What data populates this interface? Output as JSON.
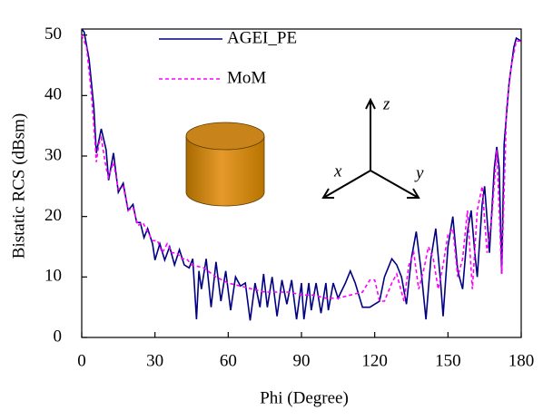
{
  "chart_data": {
    "type": "line",
    "x_label": "Phi (Degree)",
    "y_label": "Bistatic RCS (dBsm)",
    "xlim": [
      0,
      180
    ],
    "ylim": [
      0,
      51
    ],
    "xticks": [
      0,
      30,
      60,
      90,
      120,
      150,
      180
    ],
    "yticks": [
      0,
      10,
      20,
      30,
      40,
      50
    ],
    "grid": false,
    "legend": "top-left",
    "inset_axes": [
      "x",
      "y",
      "z"
    ],
    "series": [
      {
        "name": "AGEI_PE",
        "color": "#000080",
        "dash": false,
        "x": [
          0,
          1,
          3,
          5,
          6,
          8,
          10,
          11,
          13,
          15,
          17,
          19,
          21,
          22.5,
          24,
          25.5,
          27,
          29,
          30,
          32,
          34,
          36,
          38,
          40,
          42,
          44,
          45.5,
          47,
          48,
          49,
          51,
          53,
          55,
          57,
          59,
          61,
          63,
          65,
          67,
          69,
          71,
          73,
          74.5,
          76,
          78,
          80,
          82,
          84,
          86,
          88,
          90,
          91,
          93,
          94,
          96,
          98,
          100,
          101,
          103,
          105,
          108,
          110,
          112,
          115,
          118,
          120,
          122,
          124,
          127,
          129,
          131,
          133,
          135,
          137,
          139,
          141,
          143,
          145,
          147,
          148,
          150,
          152,
          154,
          156,
          158,
          159.5,
          161,
          162,
          164,
          165,
          166.5,
          167,
          169,
          170,
          171,
          172,
          173,
          175,
          177,
          178,
          180
        ],
        "values": [
          51,
          50.5,
          46,
          38,
          30.5,
          34.5,
          31,
          26,
          30.5,
          24,
          25.5,
          21,
          22,
          19,
          19,
          16.5,
          18,
          15.5,
          12.8,
          15.5,
          12.8,
          15,
          12,
          14.5,
          12,
          11.5,
          13,
          3,
          11,
          8,
          13,
          5,
          12.5,
          6,
          11,
          4.5,
          10,
          8.5,
          9,
          2.8,
          9,
          5,
          10.5,
          5,
          10,
          3.5,
          9.5,
          5.5,
          9.5,
          3,
          9,
          3,
          9,
          4.5,
          9,
          4,
          9,
          4.5,
          9,
          6.5,
          9,
          11,
          9,
          5,
          5,
          5.5,
          6,
          10,
          13,
          12,
          10,
          5.5,
          13,
          17.5,
          11,
          3,
          13,
          18,
          9,
          3.5,
          15,
          20,
          11,
          8,
          17.5,
          21,
          14,
          10,
          22,
          25,
          17,
          14,
          28,
          31.5,
          28,
          10.5,
          32,
          42,
          48,
          49.5,
          49
        ]
      },
      {
        "name": "MoM",
        "color": "#ff00ff",
        "dash": true,
        "x": [
          0,
          2,
          4,
          5.5,
          6,
          7,
          8,
          10,
          11,
          13,
          15,
          17,
          19,
          21,
          23,
          25,
          27,
          29,
          31,
          33,
          35,
          37,
          39,
          41,
          43,
          45,
          50,
          55,
          60,
          65,
          70,
          75,
          80,
          85,
          90,
          95,
          100,
          105,
          110,
          115,
          118,
          120,
          122,
          124,
          127,
          129,
          132,
          134,
          136,
          138,
          140,
          142,
          144,
          146,
          148,
          150,
          152,
          154,
          156,
          158,
          160,
          162,
          164,
          166,
          168,
          170,
          172,
          174,
          176,
          178,
          180
        ],
        "values": [
          50,
          48,
          40,
          32,
          29,
          32,
          33,
          28,
          26.5,
          29,
          24.5,
          25,
          21,
          21.5,
          18.5,
          19,
          17.5,
          16,
          16,
          14,
          15.5,
          14,
          14,
          13,
          13,
          12,
          11.5,
          10,
          9,
          8.5,
          8,
          7.5,
          7.5,
          7.5,
          7,
          7,
          6.5,
          6.5,
          7,
          7.5,
          9.5,
          9.5,
          6,
          6,
          9,
          10.5,
          6,
          12,
          14,
          8,
          11,
          15,
          13,
          8,
          12,
          17,
          18,
          10,
          13,
          21,
          8,
          21,
          25,
          14,
          20,
          31,
          10.5,
          38,
          45,
          49,
          49
        ]
      }
    ]
  }
}
